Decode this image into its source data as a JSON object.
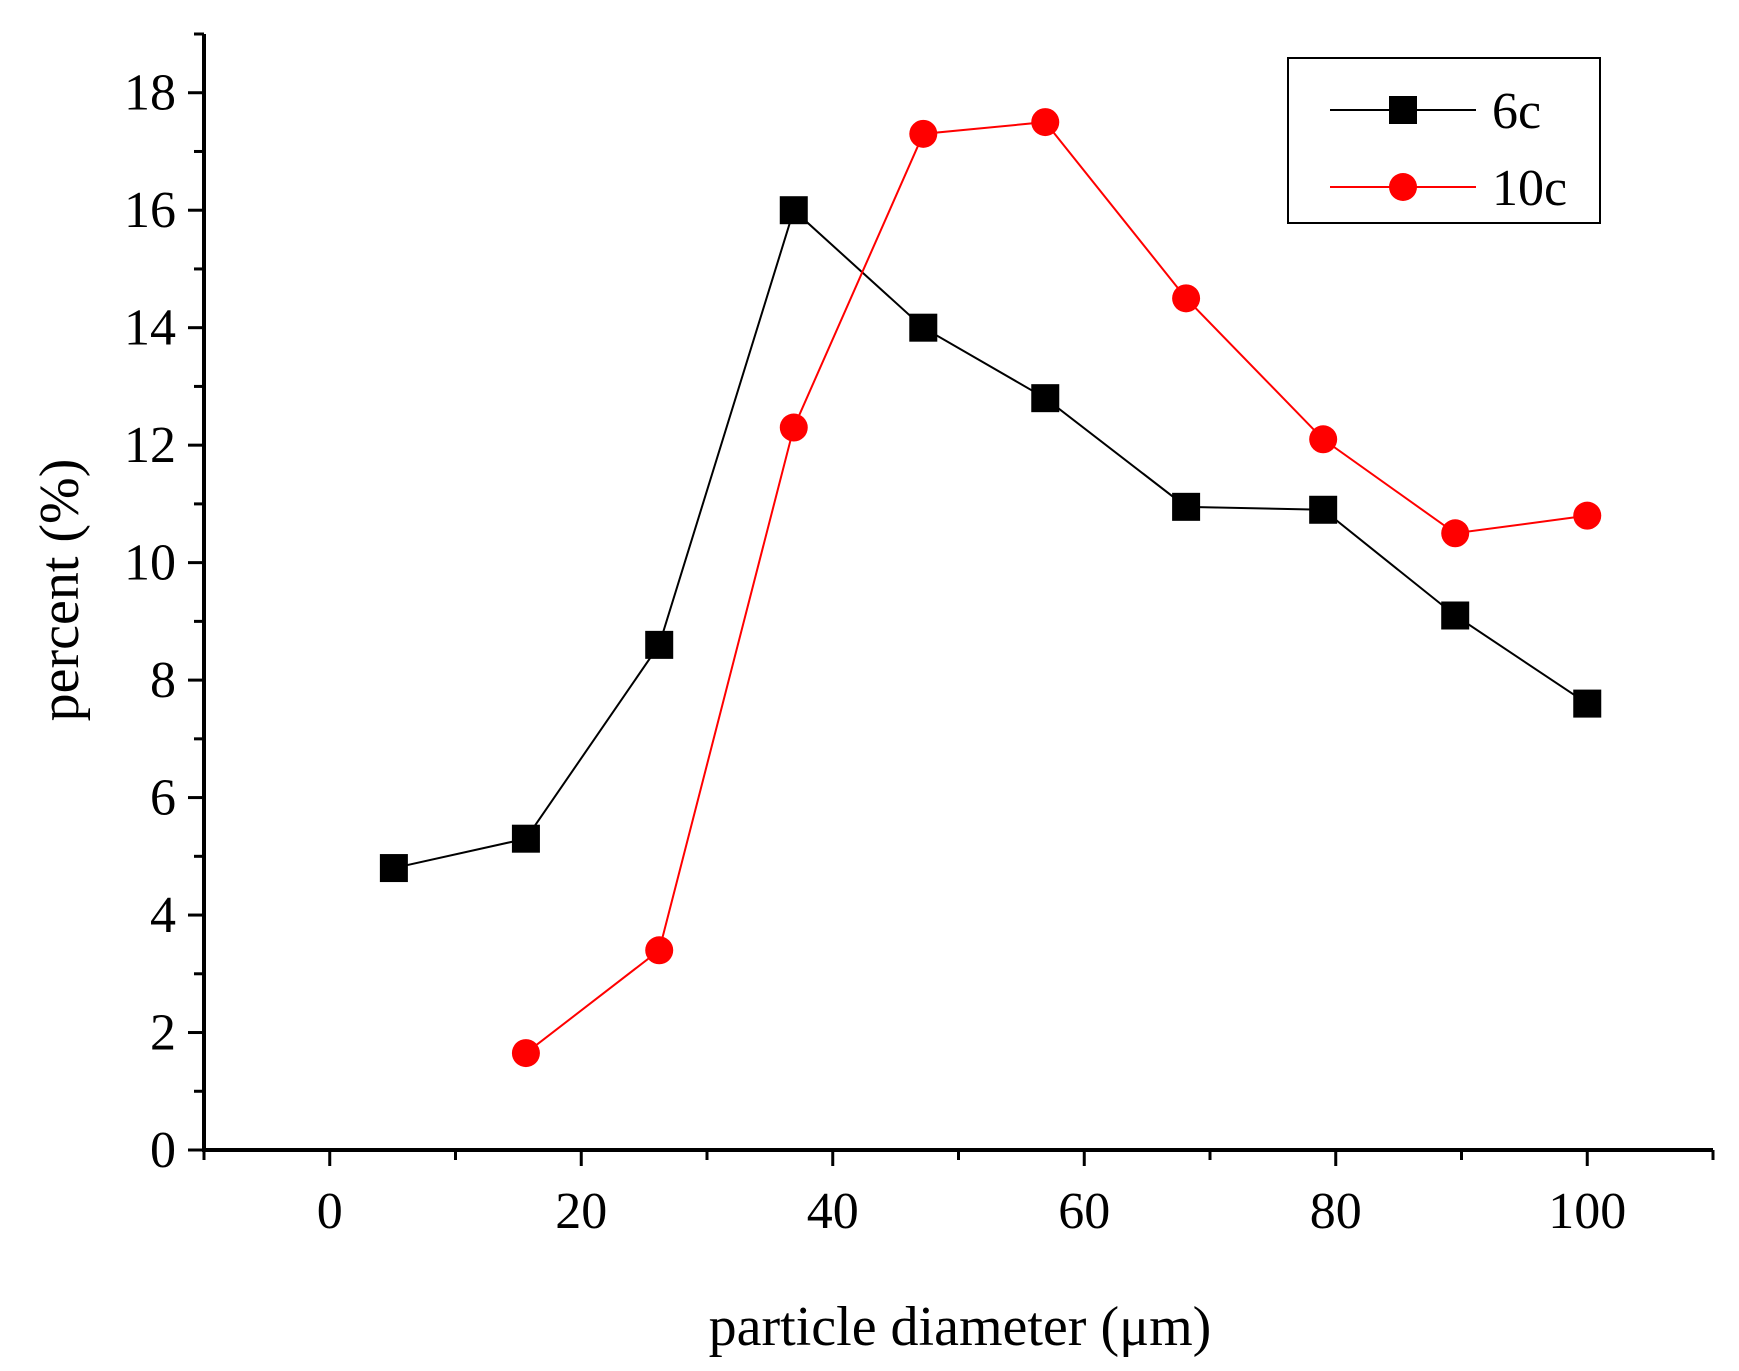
{
  "chart_data": {
    "type": "line",
    "title": "",
    "xlabel": "particle diameter (μm)",
    "ylabel": "percent (%)",
    "xlim": [
      -10,
      110
    ],
    "ylim": [
      0,
      19
    ],
    "xticks": [
      0,
      20,
      40,
      60,
      80,
      100
    ],
    "yticks": [
      0,
      2,
      4,
      6,
      8,
      10,
      12,
      14,
      16,
      18
    ],
    "xtick_labels": [
      "0",
      "20",
      "40",
      "60",
      "80",
      "100"
    ],
    "ytick_labels": [
      "0",
      "2",
      "4",
      "6",
      "8",
      "10",
      "12",
      "14",
      "16",
      "18"
    ],
    "legend_position": "top-right",
    "series": [
      {
        "name": "6c",
        "color": "#000000",
        "marker": "square",
        "x": [
          5.1,
          15.6,
          26.2,
          36.9,
          47.2,
          56.9,
          68.1,
          79.0,
          89.5,
          100.0
        ],
        "y": [
          4.8,
          5.3,
          8.6,
          16.0,
          14.0,
          12.8,
          10.95,
          10.9,
          9.1,
          7.6
        ]
      },
      {
        "name": "10c",
        "color": "#ff0000",
        "marker": "circle",
        "x": [
          15.6,
          26.2,
          36.9,
          47.2,
          56.9,
          68.1,
          79.0,
          89.5,
          100.0
        ],
        "y": [
          1.65,
          3.4,
          12.3,
          17.3,
          17.5,
          14.5,
          12.1,
          10.5,
          10.8
        ]
      }
    ]
  }
}
